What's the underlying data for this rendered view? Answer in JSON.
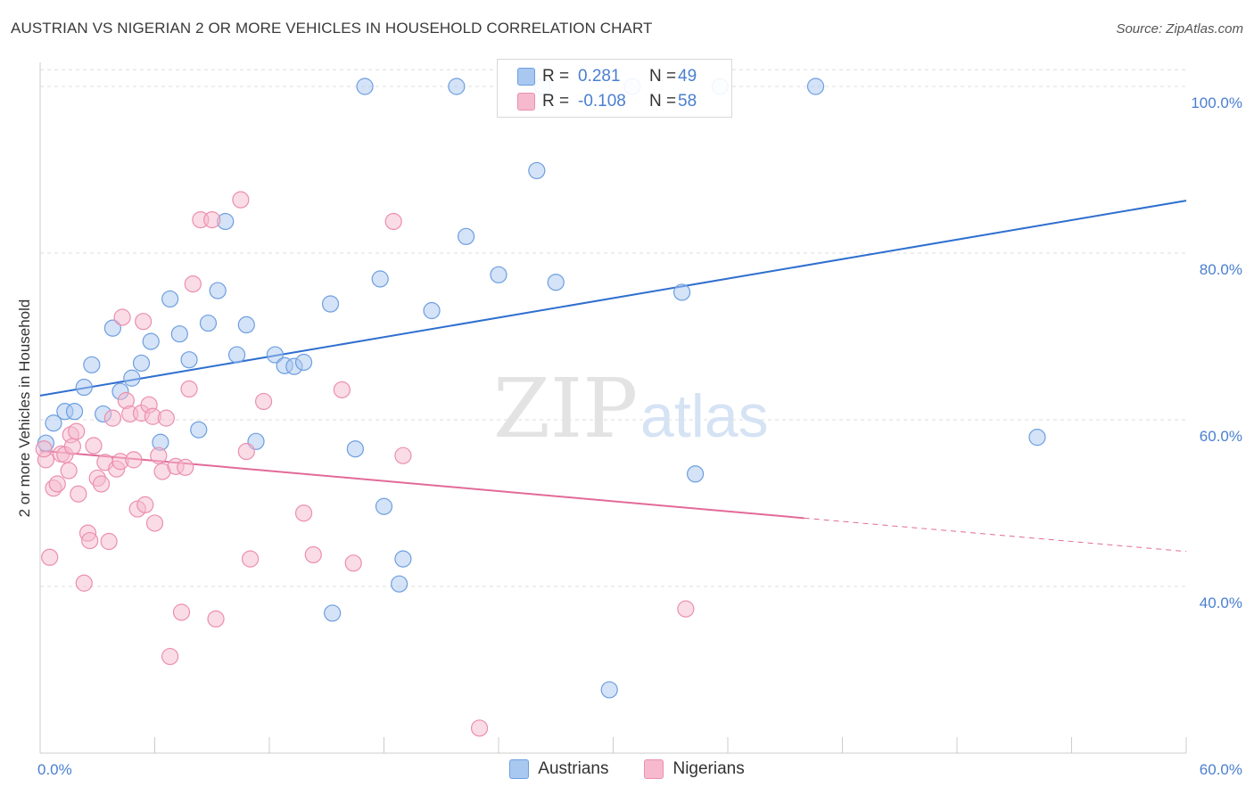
{
  "header": {
    "title": "AUSTRIAN VS NIGERIAN 2 OR MORE VEHICLES IN HOUSEHOLD CORRELATION CHART",
    "source": "Source: ZipAtlas.com"
  },
  "watermark": {
    "zip": "ZIP",
    "atlas": "atlas"
  },
  "legend": {
    "rows": [
      {
        "r_label": "R =",
        "r_value": "0.281",
        "n_label": "N =",
        "n_value": "49"
      },
      {
        "r_label": "R =",
        "r_value": "-0.108",
        "n_label": "N =",
        "n_value": "58"
      }
    ]
  },
  "bottom_legend": [
    "Austrians",
    "Nigerians"
  ],
  "colors": {
    "austrians_fill": "#a9c8f0",
    "austrians_stroke": "#6d9ee0",
    "austrians_line": "#2f6fcf",
    "nigerians_fill": "#f6b9cd",
    "nigerians_stroke": "#eb8fae",
    "nigerians_line": "#e26a98",
    "tick_text": "#4a7fd0"
  },
  "chart_data": {
    "type": "scatter",
    "title": "AUSTRIAN VS NIGERIAN 2 OR MORE VEHICLES IN HOUSEHOLD CORRELATION CHART",
    "xlabel": "",
    "ylabel": "2 or more Vehicles in Household",
    "xlim": [
      0,
      60
    ],
    "ylim": [
      20,
      102
    ],
    "x_tick_labels": [
      "0.0%",
      "60.0%"
    ],
    "y_ticks": [
      40,
      60,
      80,
      100
    ],
    "y_tick_labels": [
      "40.0%",
      "60.0%",
      "80.0%",
      "100.0%"
    ],
    "grid": true,
    "legend_position": "top-center",
    "series": [
      {
        "name": "Austrians",
        "points": [
          [
            0.3,
            57.2
          ],
          [
            0.7,
            59.6
          ],
          [
            1.3,
            61.0
          ],
          [
            1.8,
            61.0
          ],
          [
            2.3,
            63.9
          ],
          [
            2.7,
            66.6
          ],
          [
            3.3,
            60.7
          ],
          [
            3.8,
            71.0
          ],
          [
            4.2,
            63.4
          ],
          [
            4.8,
            65.0
          ],
          [
            5.3,
            66.8
          ],
          [
            5.8,
            69.4
          ],
          [
            6.3,
            57.3
          ],
          [
            6.8,
            74.5
          ],
          [
            7.3,
            70.3
          ],
          [
            7.8,
            67.2
          ],
          [
            8.3,
            58.8
          ],
          [
            8.8,
            71.6
          ],
          [
            9.3,
            75.5
          ],
          [
            9.7,
            83.8
          ],
          [
            10.3,
            67.8
          ],
          [
            10.8,
            71.4
          ],
          [
            11.3,
            57.4
          ],
          [
            12.3,
            67.8
          ],
          [
            12.8,
            66.5
          ],
          [
            13.3,
            66.4
          ],
          [
            13.8,
            66.9
          ],
          [
            15.2,
            73.9
          ],
          [
            15.3,
            36.8
          ],
          [
            16.5,
            56.5
          ],
          [
            17.0,
            100.0
          ],
          [
            17.8,
            76.9
          ],
          [
            18.0,
            49.6
          ],
          [
            18.8,
            40.3
          ],
          [
            19.0,
            43.3
          ],
          [
            20.5,
            73.1
          ],
          [
            21.8,
            100.0
          ],
          [
            22.3,
            82.0
          ],
          [
            24.0,
            77.4
          ],
          [
            26.0,
            89.9
          ],
          [
            26.3,
            100.0
          ],
          [
            27.0,
            76.5
          ],
          [
            29.8,
            27.6
          ],
          [
            31.0,
            100.0
          ],
          [
            33.6,
            75.3
          ],
          [
            34.3,
            53.5
          ],
          [
            35.6,
            100.0
          ],
          [
            40.6,
            100.0
          ],
          [
            52.2,
            57.9
          ]
        ]
      },
      {
        "name": "Nigerians",
        "points": [
          [
            0.3,
            55.2
          ],
          [
            0.5,
            43.5
          ],
          [
            0.7,
            51.8
          ],
          [
            0.9,
            52.3
          ],
          [
            1.1,
            55.9
          ],
          [
            1.3,
            55.8
          ],
          [
            1.5,
            53.9
          ],
          [
            1.6,
            58.2
          ],
          [
            1.7,
            56.8
          ],
          [
            1.9,
            58.6
          ],
          [
            2.0,
            51.1
          ],
          [
            2.3,
            40.4
          ],
          [
            2.5,
            46.4
          ],
          [
            2.6,
            45.5
          ],
          [
            2.8,
            56.9
          ],
          [
            3.0,
            53.0
          ],
          [
            3.2,
            52.3
          ],
          [
            3.4,
            54.9
          ],
          [
            3.6,
            45.4
          ],
          [
            3.8,
            60.2
          ],
          [
            4.0,
            54.1
          ],
          [
            4.2,
            55.0
          ],
          [
            4.3,
            72.3
          ],
          [
            4.5,
            62.3
          ],
          [
            4.7,
            60.7
          ],
          [
            4.9,
            55.2
          ],
          [
            5.1,
            49.3
          ],
          [
            5.3,
            60.8
          ],
          [
            5.4,
            71.8
          ],
          [
            5.5,
            49.8
          ],
          [
            5.7,
            61.8
          ],
          [
            5.9,
            60.4
          ],
          [
            6.0,
            47.6
          ],
          [
            6.2,
            55.7
          ],
          [
            6.4,
            53.8
          ],
          [
            6.6,
            60.2
          ],
          [
            6.8,
            31.6
          ],
          [
            7.1,
            54.4
          ],
          [
            7.4,
            36.9
          ],
          [
            7.6,
            54.3
          ],
          [
            7.8,
            63.7
          ],
          [
            8.0,
            76.3
          ],
          [
            8.4,
            84.0
          ],
          [
            9.0,
            84.0
          ],
          [
            9.2,
            36.1
          ],
          [
            10.5,
            86.4
          ],
          [
            10.8,
            56.2
          ],
          [
            11.0,
            43.3
          ],
          [
            11.7,
            62.2
          ],
          [
            13.8,
            48.8
          ],
          [
            14.3,
            43.8
          ],
          [
            15.8,
            63.6
          ],
          [
            16.4,
            42.8
          ],
          [
            18.5,
            83.8
          ],
          [
            19.0,
            55.7
          ],
          [
            23.0,
            23.0
          ],
          [
            33.8,
            37.3
          ],
          [
            0.2,
            56.5
          ]
        ]
      }
    ],
    "trend_lines": [
      {
        "series": "Austrians",
        "x": [
          0,
          60
        ],
        "y": [
          62.9,
          86.3
        ],
        "style": "solid"
      },
      {
        "series": "Nigerians",
        "x": [
          0,
          40
        ],
        "y": [
          56.3,
          48.2
        ],
        "style": "solid"
      },
      {
        "series": "Nigerians",
        "x": [
          40,
          60
        ],
        "y": [
          48.2,
          44.2
        ],
        "style": "dashed"
      }
    ]
  }
}
